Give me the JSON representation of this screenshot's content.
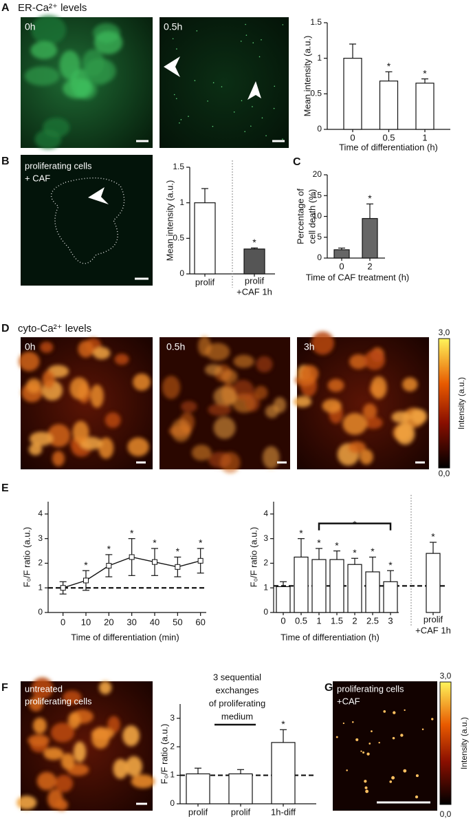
{
  "figure": {
    "panel_labels": [
      "A",
      "B",
      "C",
      "D",
      "E",
      "F",
      "G"
    ],
    "er_title": "ER-Ca²⁺ levels",
    "cyto_title": "cyto-Ca²⁺ levels",
    "images": {
      "a1": "0h",
      "a2": "0.5h",
      "b": [
        "proliferating cells",
        "+ CAF"
      ],
      "d1": "0h",
      "d2": "0.5h",
      "d3": "3h",
      "f": [
        "untreated",
        "proliferating cells"
      ],
      "g": [
        "proliferating cells",
        "+CAF"
      ]
    },
    "colorbars": [
      {
        "max": "3,0",
        "min": "0,0",
        "label": "Intensity (a.u.)"
      },
      {
        "max": "3,0",
        "min": "0,0",
        "label": "Intensity (a.u.)"
      }
    ]
  },
  "chart_data": [
    {
      "type": "bar",
      "categories": [
        "0",
        "0.5",
        "1"
      ],
      "values": [
        1,
        0.68,
        0.65
      ],
      "errors": [
        0.2,
        0.13,
        0.06
      ],
      "markers": [
        null,
        "*",
        "*"
      ],
      "colors": [
        "#ffffff",
        "#ffffff",
        "#ffffff"
      ],
      "ylim": [
        0,
        1.5
      ],
      "yticks": [
        0,
        0.5,
        1,
        1.5
      ],
      "ylabel": [
        "Mean intensity (a.u.)"
      ],
      "xlabel": "Time of differentiation (h)"
    },
    {
      "type": "bar",
      "categories": [
        "prolif",
        [
          "prolif",
          "+CAF 1h"
        ]
      ],
      "values": [
        1,
        0.35
      ],
      "errors": [
        0.2,
        0.015
      ],
      "markers": [
        null,
        "*"
      ],
      "colors": [
        "#ffffff",
        "#555555"
      ],
      "separator": true,
      "ylim": [
        0,
        1.5
      ],
      "yticks": [
        0,
        0.5,
        1,
        1.5
      ],
      "ylabel": [
        "Mean intensity (a.u.)"
      ]
    },
    {
      "type": "bar",
      "categories": [
        "0",
        "2"
      ],
      "values": [
        2,
        9.5
      ],
      "errors": [
        0.4,
        3.5
      ],
      "markers": [
        null,
        "*"
      ],
      "colors": [
        "#666666",
        "#666666"
      ],
      "ylim": [
        0,
        20
      ],
      "yticks": [
        0,
        5,
        10,
        15,
        20
      ],
      "ylabel": [
        "Percentage of",
        "cell death (%)"
      ],
      "xlabel": "Time of CAF treatment (h)"
    },
    {
      "type": "line",
      "x": [
        0,
        10,
        20,
        30,
        40,
        50,
        60
      ],
      "values": [
        1,
        1.3,
        1.9,
        2.25,
        2.05,
        1.85,
        2.1
      ],
      "errors": [
        0.25,
        0.4,
        0.45,
        0.75,
        0.55,
        0.4,
        0.5
      ],
      "markers": [
        null,
        "*",
        "*",
        "*",
        "*",
        "*",
        "*"
      ],
      "xlim": [
        -6.5,
        62.5
      ],
      "xticks": [
        0,
        10,
        20,
        30,
        40,
        50,
        60
      ],
      "ylim": [
        0,
        4.5
      ],
      "yticks": [
        0,
        1,
        2,
        3,
        4
      ],
      "reference_line": 1,
      "ylabel": [
        "F₀/F ratio (a.u.)"
      ],
      "xlabel": "Time of differentiation (min)"
    },
    {
      "type": "bar",
      "categories": [
        "0",
        "0.5",
        "1",
        "1.5",
        "2",
        "2.5",
        "3",
        [
          "prolif",
          "+CAF 1h"
        ]
      ],
      "values": [
        1.05,
        2.25,
        2.15,
        2.15,
        1.95,
        1.65,
        1.25,
        2.4
      ],
      "errors": [
        0.2,
        0.75,
        0.45,
        0.35,
        0.25,
        0.6,
        0.45,
        0.45
      ],
      "markers": [
        null,
        "*",
        "*",
        "*",
        "*",
        "*",
        "*",
        "*"
      ],
      "colors": [
        "#ffffff",
        "#ffffff",
        "#ffffff",
        "#ffffff",
        "#ffffff",
        "#ffffff",
        "#ffffff",
        "#ffffff"
      ],
      "separator": true,
      "bracket": {
        "label": "*",
        "from": "1",
        "to": "3"
      },
      "ylim": [
        0,
        4.5
      ],
      "yticks": [
        0,
        1,
        2,
        3,
        4
      ],
      "reference_line": 1.08,
      "ylabel": [
        "F₀/F ratio (a.u.)"
      ],
      "xlabel": "Time of differentiation (h)"
    },
    {
      "type": "bar",
      "categories": [
        "prolif",
        "prolif",
        "1h-diff"
      ],
      "values": [
        1.05,
        1.05,
        2.15
      ],
      "errors": [
        0.2,
        0.15,
        0.45
      ],
      "markers": [
        null,
        null,
        "*"
      ],
      "colors": [
        "#ffffff",
        "#ffffff",
        "#ffffff"
      ],
      "annotation": [
        "3 sequential",
        "exchanges",
        "of proliferating",
        "medium"
      ],
      "ylim": [
        0,
        3.5
      ],
      "yticks": [
        0,
        1,
        2,
        3
      ],
      "reference_line": 1,
      "ylabel": [
        "F₀/F ratio (a.u.)"
      ]
    }
  ]
}
